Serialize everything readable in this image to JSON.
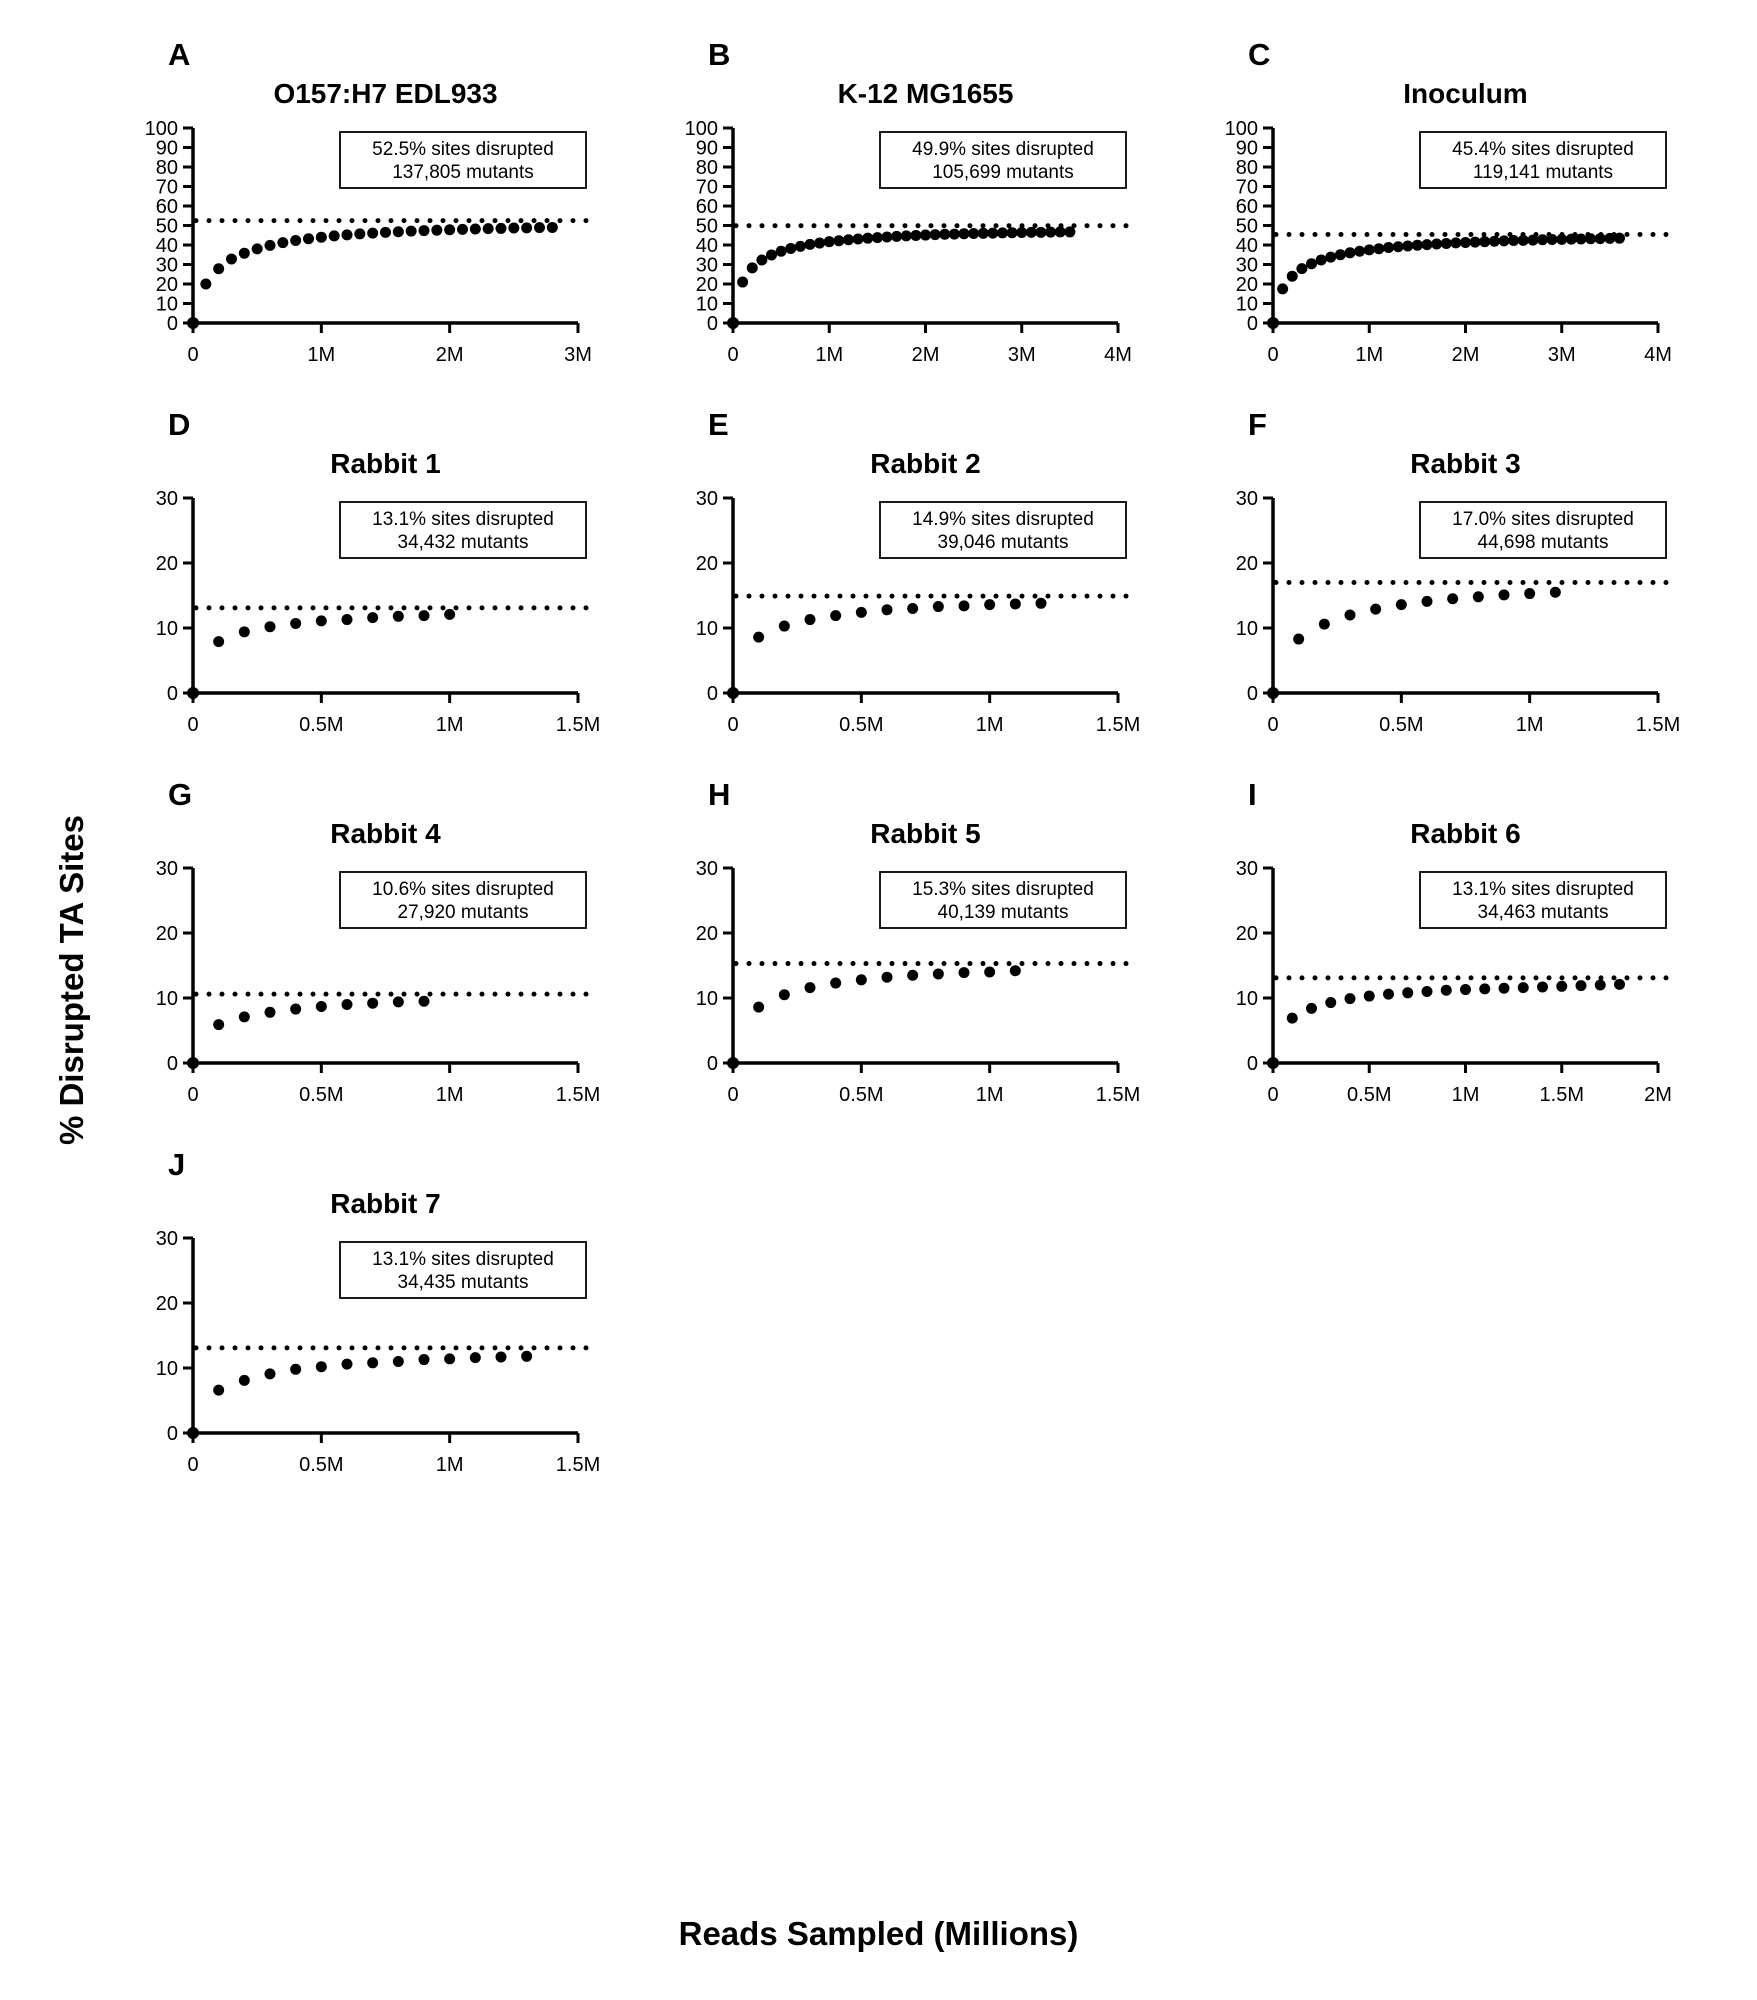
{
  "figure": {
    "y_axis_label": "% Disrupted TA Sites",
    "x_axis_label": "Reads Sampled (Millions)"
  },
  "chart_data": [
    {
      "id": "A",
      "type": "scatter",
      "title": "O157:H7 EDL933",
      "annotation": [
        "52.5% sites disrupted",
        "137,805 mutants"
      ],
      "pct_sites_disrupted": 52.5,
      "mutants": 137805,
      "xlim": [
        0,
        3
      ],
      "ylim": [
        0,
        100
      ],
      "y_tick_step": 10,
      "x_ticks": [
        {
          "v": 0,
          "label": "0"
        },
        {
          "v": 1,
          "label": "1M"
        },
        {
          "v": 2,
          "label": "2M"
        },
        {
          "v": 3,
          "label": "3M"
        }
      ],
      "dotted_line_y": 52.5,
      "points": [
        [
          0,
          0
        ],
        [
          0.1,
          20
        ],
        [
          0.2,
          27.8
        ],
        [
          0.3,
          32.8
        ],
        [
          0.4,
          35.8
        ],
        [
          0.5,
          38
        ],
        [
          0.6,
          39.8
        ],
        [
          0.7,
          41.2
        ],
        [
          0.8,
          42.3
        ],
        [
          0.9,
          43.2
        ],
        [
          1,
          44
        ],
        [
          1.1,
          44.7
        ],
        [
          1.2,
          45.2
        ],
        [
          1.3,
          45.7
        ],
        [
          1.4,
          46.1
        ],
        [
          1.5,
          46.5
        ],
        [
          1.6,
          46.8
        ],
        [
          1.7,
          47.1
        ],
        [
          1.8,
          47.4
        ],
        [
          1.9,
          47.6
        ],
        [
          2,
          47.8
        ],
        [
          2.1,
          48
        ],
        [
          2.2,
          48.2
        ],
        [
          2.3,
          48.4
        ],
        [
          2.4,
          48.5
        ],
        [
          2.5,
          48.7
        ],
        [
          2.6,
          48.8
        ],
        [
          2.7,
          48.9
        ],
        [
          2.8,
          49
        ]
      ]
    },
    {
      "id": "B",
      "type": "scatter",
      "title": "K-12 MG1655",
      "annotation": [
        "49.9% sites disrupted",
        "105,699 mutants"
      ],
      "pct_sites_disrupted": 49.9,
      "mutants": 105699,
      "xlim": [
        0,
        4
      ],
      "ylim": [
        0,
        100
      ],
      "y_tick_step": 10,
      "x_ticks": [
        {
          "v": 0,
          "label": "0"
        },
        {
          "v": 1,
          "label": "1M"
        },
        {
          "v": 2,
          "label": "2M"
        },
        {
          "v": 3,
          "label": "3M"
        },
        {
          "v": 4,
          "label": "4M"
        }
      ],
      "dotted_line_y": 49.9,
      "points": [
        [
          0,
          0
        ],
        [
          0.1,
          21
        ],
        [
          0.2,
          28.3
        ],
        [
          0.3,
          32.3
        ],
        [
          0.4,
          34.9
        ],
        [
          0.5,
          36.8
        ],
        [
          0.6,
          38.2
        ],
        [
          0.7,
          39.3
        ],
        [
          0.8,
          40.3
        ],
        [
          0.9,
          41
        ],
        [
          1,
          41.7
        ],
        [
          1.1,
          42.2
        ],
        [
          1.2,
          42.7
        ],
        [
          1.3,
          43.1
        ],
        [
          1.4,
          43.5
        ],
        [
          1.5,
          43.8
        ],
        [
          1.6,
          44.1
        ],
        [
          1.7,
          44.4
        ],
        [
          1.8,
          44.7
        ],
        [
          1.9,
          44.9
        ],
        [
          2,
          45.1
        ],
        [
          2.1,
          45.3
        ],
        [
          2.2,
          45.5
        ],
        [
          2.3,
          45.6
        ],
        [
          2.4,
          45.8
        ],
        [
          2.5,
          45.9
        ],
        [
          2.6,
          46
        ],
        [
          2.7,
          46.1
        ],
        [
          2.8,
          46.2
        ],
        [
          2.9,
          46.3
        ],
        [
          3,
          46.4
        ],
        [
          3.1,
          46.5
        ],
        [
          3.2,
          46.5
        ],
        [
          3.3,
          46.6
        ],
        [
          3.4,
          46.7
        ],
        [
          3.5,
          46.7
        ]
      ]
    },
    {
      "id": "C",
      "type": "scatter",
      "title": "Inoculum",
      "annotation": [
        "45.4% sites disrupted",
        "119,141 mutants"
      ],
      "pct_sites_disrupted": 45.4,
      "mutants": 119141,
      "xlim": [
        0,
        4
      ],
      "ylim": [
        0,
        100
      ],
      "y_tick_step": 10,
      "x_ticks": [
        {
          "v": 0,
          "label": "0"
        },
        {
          "v": 1,
          "label": "1M"
        },
        {
          "v": 2,
          "label": "2M"
        },
        {
          "v": 3,
          "label": "3M"
        },
        {
          "v": 4,
          "label": "4M"
        }
      ],
      "dotted_line_y": 45.4,
      "points": [
        [
          0,
          0
        ],
        [
          0.1,
          17.5
        ],
        [
          0.2,
          24
        ],
        [
          0.3,
          27.9
        ],
        [
          0.4,
          30.4
        ],
        [
          0.5,
          32.3
        ],
        [
          0.6,
          33.8
        ],
        [
          0.7,
          35
        ],
        [
          0.8,
          36
        ],
        [
          0.9,
          36.8
        ],
        [
          1,
          37.5
        ],
        [
          1.1,
          38.1
        ],
        [
          1.2,
          38.7
        ],
        [
          1.3,
          39.1
        ],
        [
          1.4,
          39.5
        ],
        [
          1.5,
          39.9
        ],
        [
          1.6,
          40.2
        ],
        [
          1.7,
          40.5
        ],
        [
          1.8,
          40.8
        ],
        [
          1.9,
          41.1
        ],
        [
          2,
          41.3
        ],
        [
          2.1,
          41.5
        ],
        [
          2.2,
          41.7
        ],
        [
          2.3,
          41.9
        ],
        [
          2.4,
          42.1
        ],
        [
          2.5,
          42.3
        ],
        [
          2.6,
          42.4
        ],
        [
          2.7,
          42.5
        ],
        [
          2.8,
          42.7
        ],
        [
          2.9,
          42.8
        ],
        [
          3,
          42.9
        ],
        [
          3.1,
          43
        ],
        [
          3.2,
          43.1
        ],
        [
          3.3,
          43.2
        ],
        [
          3.4,
          43.3
        ],
        [
          3.5,
          43.4
        ],
        [
          3.6,
          43.5
        ]
      ]
    },
    {
      "id": "D",
      "type": "scatter",
      "title": "Rabbit 1",
      "annotation": [
        "13.1% sites disrupted",
        "34,432 mutants"
      ],
      "pct_sites_disrupted": 13.1,
      "mutants": 34432,
      "xlim": [
        0,
        1.5
      ],
      "ylim": [
        0,
        30
      ],
      "y_tick_step": 10,
      "x_ticks": [
        {
          "v": 0,
          "label": "0"
        },
        {
          "v": 0.5,
          "label": "0.5M"
        },
        {
          "v": 1,
          "label": "1M"
        },
        {
          "v": 1.5,
          "label": "1.5M"
        }
      ],
      "dotted_line_y": 13.1,
      "points": [
        [
          0,
          0
        ],
        [
          0.1,
          7.9
        ],
        [
          0.2,
          9.4
        ],
        [
          0.3,
          10.2
        ],
        [
          0.4,
          10.7
        ],
        [
          0.5,
          11.1
        ],
        [
          0.6,
          11.3
        ],
        [
          0.7,
          11.6
        ],
        [
          0.8,
          11.8
        ],
        [
          0.9,
          11.9
        ],
        [
          1,
          12.1
        ]
      ]
    },
    {
      "id": "E",
      "type": "scatter",
      "title": "Rabbit 2",
      "annotation": [
        "14.9% sites disrupted",
        "39,046 mutants"
      ],
      "pct_sites_disrupted": 14.9,
      "mutants": 39046,
      "xlim": [
        0,
        1.5
      ],
      "ylim": [
        0,
        30
      ],
      "y_tick_step": 10,
      "x_ticks": [
        {
          "v": 0,
          "label": "0"
        },
        {
          "v": 0.5,
          "label": "0.5M"
        },
        {
          "v": 1,
          "label": "1M"
        },
        {
          "v": 1.5,
          "label": "1.5M"
        }
      ],
      "dotted_line_y": 14.9,
      "points": [
        [
          0,
          0
        ],
        [
          0.1,
          8.6
        ],
        [
          0.2,
          10.3
        ],
        [
          0.3,
          11.3
        ],
        [
          0.4,
          11.9
        ],
        [
          0.5,
          12.4
        ],
        [
          0.6,
          12.8
        ],
        [
          0.7,
          13
        ],
        [
          0.8,
          13.3
        ],
        [
          0.9,
          13.4
        ],
        [
          1,
          13.6
        ],
        [
          1.1,
          13.7
        ],
        [
          1.2,
          13.8
        ]
      ]
    },
    {
      "id": "F",
      "type": "scatter",
      "title": "Rabbit 3",
      "annotation": [
        "17.0% sites disrupted",
        "44,698 mutants"
      ],
      "pct_sites_disrupted": 17.0,
      "mutants": 44698,
      "xlim": [
        0,
        1.5
      ],
      "ylim": [
        0,
        30
      ],
      "y_tick_step": 10,
      "x_ticks": [
        {
          "v": 0,
          "label": "0"
        },
        {
          "v": 0.5,
          "label": "0.5M"
        },
        {
          "v": 1,
          "label": "1M"
        },
        {
          "v": 1.5,
          "label": "1.5M"
        }
      ],
      "dotted_line_y": 17.0,
      "points": [
        [
          0,
          0
        ],
        [
          0.1,
          8.3
        ],
        [
          0.2,
          10.6
        ],
        [
          0.3,
          12
        ],
        [
          0.4,
          12.9
        ],
        [
          0.5,
          13.6
        ],
        [
          0.6,
          14.1
        ],
        [
          0.7,
          14.5
        ],
        [
          0.8,
          14.8
        ],
        [
          0.9,
          15.1
        ],
        [
          1,
          15.3
        ],
        [
          1.1,
          15.5
        ]
      ]
    },
    {
      "id": "G",
      "type": "scatter",
      "title": "Rabbit 4",
      "annotation": [
        "10.6% sites disrupted",
        "27,920 mutants"
      ],
      "pct_sites_disrupted": 10.6,
      "mutants": 27920,
      "xlim": [
        0,
        1.5
      ],
      "ylim": [
        0,
        30
      ],
      "y_tick_step": 10,
      "x_ticks": [
        {
          "v": 0,
          "label": "0"
        },
        {
          "v": 0.5,
          "label": "0.5M"
        },
        {
          "v": 1,
          "label": "1M"
        },
        {
          "v": 1.5,
          "label": "1.5M"
        }
      ],
      "dotted_line_y": 10.6,
      "points": [
        [
          0,
          0
        ],
        [
          0.1,
          5.9
        ],
        [
          0.2,
          7.1
        ],
        [
          0.3,
          7.8
        ],
        [
          0.4,
          8.3
        ],
        [
          0.5,
          8.7
        ],
        [
          0.6,
          9
        ],
        [
          0.7,
          9.2
        ],
        [
          0.8,
          9.4
        ],
        [
          0.9,
          9.5
        ]
      ]
    },
    {
      "id": "H",
      "type": "scatter",
      "title": "Rabbit 5",
      "annotation": [
        "15.3% sites disrupted",
        "40,139 mutants"
      ],
      "pct_sites_disrupted": 15.3,
      "mutants": 40139,
      "xlim": [
        0,
        1.5
      ],
      "ylim": [
        0,
        30
      ],
      "y_tick_step": 10,
      "x_ticks": [
        {
          "v": 0,
          "label": "0"
        },
        {
          "v": 0.5,
          "label": "0.5M"
        },
        {
          "v": 1,
          "label": "1M"
        },
        {
          "v": 1.5,
          "label": "1.5M"
        }
      ],
      "dotted_line_y": 15.3,
      "points": [
        [
          0,
          0
        ],
        [
          0.1,
          8.6
        ],
        [
          0.2,
          10.5
        ],
        [
          0.3,
          11.6
        ],
        [
          0.4,
          12.3
        ],
        [
          0.5,
          12.8
        ],
        [
          0.6,
          13.2
        ],
        [
          0.7,
          13.5
        ],
        [
          0.8,
          13.7
        ],
        [
          0.9,
          13.9
        ],
        [
          1,
          14
        ],
        [
          1.1,
          14.2
        ]
      ]
    },
    {
      "id": "I",
      "type": "scatter",
      "title": "Rabbit 6",
      "annotation": [
        "13.1% sites disrupted",
        "34,463 mutants"
      ],
      "pct_sites_disrupted": 13.1,
      "mutants": 34463,
      "xlim": [
        0,
        2
      ],
      "ylim": [
        0,
        30
      ],
      "y_tick_step": 10,
      "x_ticks": [
        {
          "v": 0,
          "label": "0"
        },
        {
          "v": 0.5,
          "label": "0.5M"
        },
        {
          "v": 1,
          "label": "1M"
        },
        {
          "v": 1.5,
          "label": "1.5M"
        },
        {
          "v": 2,
          "label": "2M"
        }
      ],
      "dotted_line_y": 13.1,
      "points": [
        [
          0,
          0
        ],
        [
          0.1,
          6.9
        ],
        [
          0.2,
          8.4
        ],
        [
          0.3,
          9.3
        ],
        [
          0.4,
          9.9
        ],
        [
          0.5,
          10.3
        ],
        [
          0.6,
          10.6
        ],
        [
          0.7,
          10.8
        ],
        [
          0.8,
          11
        ],
        [
          0.9,
          11.2
        ],
        [
          1,
          11.3
        ],
        [
          1.1,
          11.4
        ],
        [
          1.2,
          11.5
        ],
        [
          1.3,
          11.6
        ],
        [
          1.4,
          11.7
        ],
        [
          1.5,
          11.8
        ],
        [
          1.6,
          11.9
        ],
        [
          1.7,
          12
        ],
        [
          1.8,
          12.1
        ]
      ]
    },
    {
      "id": "J",
      "type": "scatter",
      "title": "Rabbit 7",
      "annotation": [
        "13.1% sites disrupted",
        "34,435 mutants"
      ],
      "pct_sites_disrupted": 13.1,
      "mutants": 34435,
      "xlim": [
        0,
        1.5
      ],
      "ylim": [
        0,
        30
      ],
      "y_tick_step": 10,
      "x_ticks": [
        {
          "v": 0,
          "label": "0"
        },
        {
          "v": 0.5,
          "label": "0.5M"
        },
        {
          "v": 1,
          "label": "1M"
        },
        {
          "v": 1.5,
          "label": "1.5M"
        }
      ],
      "dotted_line_y": 13.1,
      "points": [
        [
          0,
          0
        ],
        [
          0.1,
          6.6
        ],
        [
          0.2,
          8.1
        ],
        [
          0.3,
          9.1
        ],
        [
          0.4,
          9.8
        ],
        [
          0.5,
          10.2
        ],
        [
          0.6,
          10.6
        ],
        [
          0.7,
          10.8
        ],
        [
          0.8,
          11
        ],
        [
          0.9,
          11.3
        ],
        [
          1,
          11.4
        ],
        [
          1.1,
          11.6
        ],
        [
          1.2,
          11.7
        ],
        [
          1.3,
          11.8
        ]
      ]
    }
  ]
}
